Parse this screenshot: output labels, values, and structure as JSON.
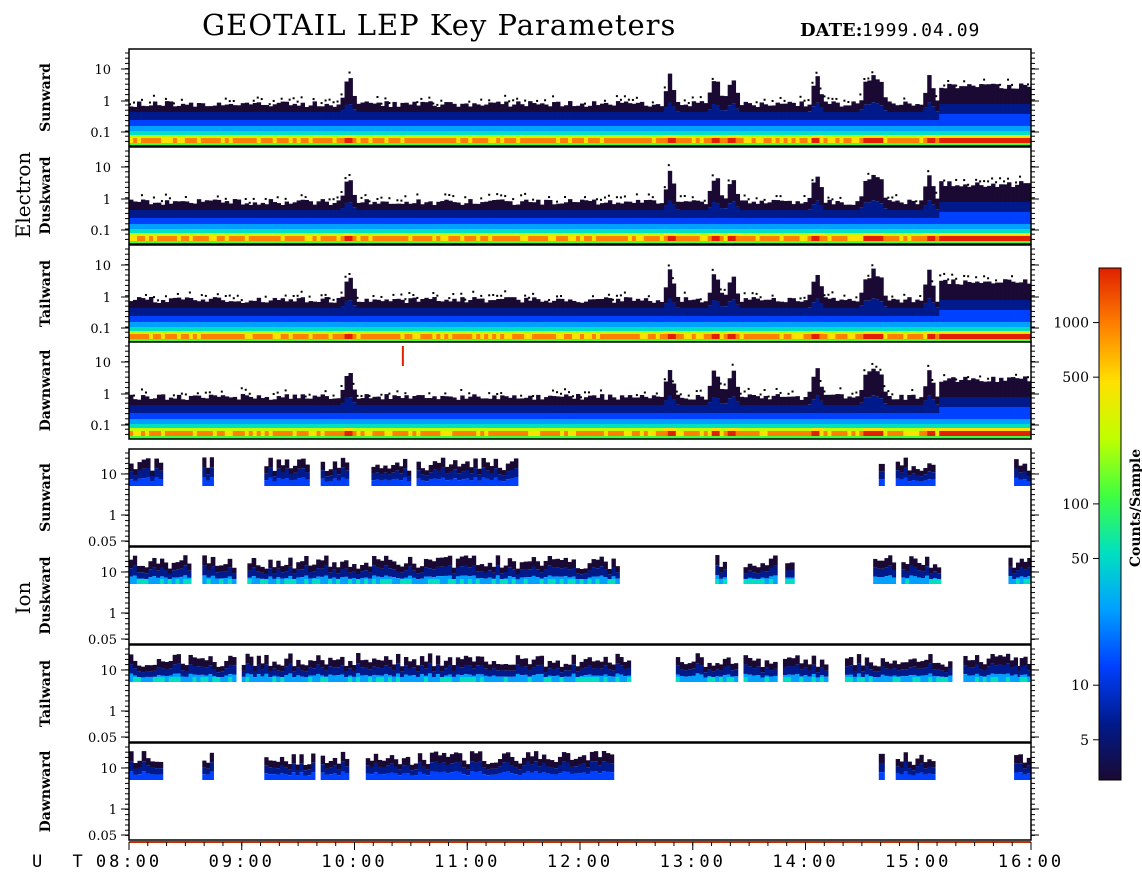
{
  "header": {
    "title": "GEOTAIL LEP Key Parameters",
    "date_label": "DATE:",
    "date_value": "1999.04.09"
  },
  "chart_data": {
    "type": "heatmap",
    "title": "GEOTAIL LEP Key Parameters",
    "x_axis": {
      "label": "U T",
      "ticks": [
        "08:00",
        "09:00",
        "10:00",
        "11:00",
        "12:00",
        "13:00",
        "14:00",
        "15:00",
        "16:00"
      ],
      "range": [
        "08:00",
        "16:00"
      ]
    },
    "groups": [
      {
        "name": "Electron",
        "panels": [
          {
            "name": "Sunward",
            "y_ticks": [
              "10",
              "1",
              "0.1"
            ],
            "y_scale": "log"
          },
          {
            "name": "Duskward",
            "y_ticks": [
              "10",
              "1",
              "0.1"
            ],
            "y_scale": "log"
          },
          {
            "name": "Tailward",
            "y_ticks": [
              "10",
              "1",
              "0.1"
            ],
            "y_scale": "log"
          },
          {
            "name": "Dawnward",
            "y_ticks": [
              "10",
              "1",
              "0.1"
            ],
            "y_scale": "log"
          }
        ]
      },
      {
        "name": "Ion",
        "panels": [
          {
            "name": "Sunward",
            "y_ticks": [
              "10",
              "1",
              "0.05"
            ],
            "y_scale": "log"
          },
          {
            "name": "Duskward",
            "y_ticks": [
              "10",
              "1",
              "0.05"
            ],
            "y_scale": "log"
          },
          {
            "name": "Tailward",
            "y_ticks": [
              "10",
              "1",
              "0.05"
            ],
            "y_scale": "log"
          },
          {
            "name": "Dawnward",
            "y_ticks": [
              "10",
              "1",
              "0.05"
            ],
            "y_scale": "log"
          }
        ]
      }
    ],
    "colorbar": {
      "label": "Counts/Sample",
      "scale": "log",
      "range": [
        3,
        2000
      ],
      "ticks": [
        "1000",
        "500",
        "100",
        "50",
        "10",
        "5"
      ]
    },
    "ion_activity": {
      "Sunward": [
        [
          8.0,
          8.3
        ],
        [
          8.65,
          8.75
        ],
        [
          9.2,
          9.6
        ],
        [
          9.7,
          9.95
        ],
        [
          10.15,
          10.5
        ],
        [
          10.55,
          11.45
        ],
        [
          14.65,
          14.7
        ],
        [
          14.8,
          15.15
        ],
        [
          15.85,
          16.0
        ]
      ],
      "Duskward": [
        [
          8.0,
          8.55
        ],
        [
          8.65,
          8.95
        ],
        [
          9.05,
          9.2
        ],
        [
          9.2,
          12.35
        ],
        [
          13.2,
          13.3
        ],
        [
          13.45,
          13.75
        ],
        [
          13.82,
          13.9
        ],
        [
          14.6,
          14.8
        ],
        [
          14.85,
          15.2
        ],
        [
          15.8,
          16.0
        ]
      ],
      "Tailward": [
        [
          8.0,
          8.95
        ],
        [
          9.0,
          9.2
        ],
        [
          9.2,
          12.35
        ],
        [
          12.35,
          12.45
        ],
        [
          12.85,
          13.2
        ],
        [
          13.2,
          13.4
        ],
        [
          13.45,
          13.75
        ],
        [
          13.8,
          14.2
        ],
        [
          14.35,
          15.3
        ],
        [
          15.4,
          15.95
        ],
        [
          15.9,
          16.0
        ]
      ],
      "Dawnward": [
        [
          8.0,
          8.3
        ],
        [
          8.65,
          8.75
        ],
        [
          9.2,
          9.65
        ],
        [
          9.7,
          9.95
        ],
        [
          10.1,
          11.45
        ],
        [
          11.45,
          12.3
        ],
        [
          14.65,
          14.7
        ],
        [
          14.8,
          15.15
        ],
        [
          15.85,
          16.0
        ]
      ]
    },
    "colors": {
      "palette": [
        "#1a0a33",
        "#001a8c",
        "#0040ff",
        "#00a0ff",
        "#00e0c0",
        "#40ff40",
        "#c0ff00",
        "#ffe000",
        "#ff8000",
        "#e02000"
      ]
    }
  }
}
